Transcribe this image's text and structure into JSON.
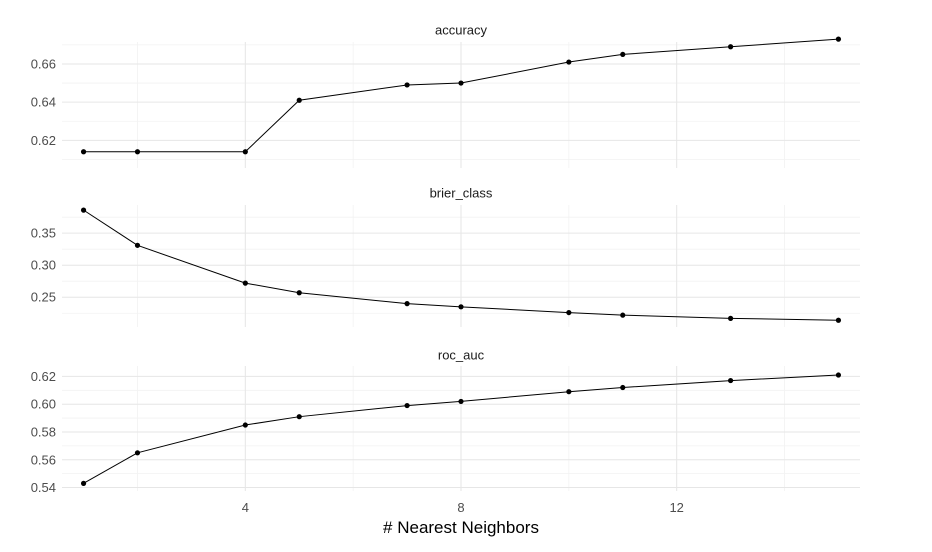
{
  "chart_data": {
    "type": "line",
    "xlabel": "# Nearest Neighbors",
    "xlim": [
      0.6,
      15.4
    ],
    "x_ticks": [
      4,
      8,
      12
    ],
    "x_minor_ticks": [
      2,
      6,
      10,
      14
    ],
    "grid": true,
    "facets": [
      {
        "title": "accuracy",
        "ylim": [
          0.6055,
          0.6715
        ],
        "y_ticks": [
          0.62,
          0.64,
          0.66
        ],
        "y_tick_labels": [
          "0.62",
          "0.64",
          "0.66"
        ],
        "y_minor_ticks": [
          0.61,
          0.63,
          0.65,
          0.67
        ],
        "x": [
          1,
          2,
          4,
          5,
          7,
          8,
          10,
          11,
          13,
          15
        ],
        "y": [
          0.614,
          0.614,
          0.614,
          0.641,
          0.649,
          0.65,
          0.661,
          0.665,
          0.669,
          0.673
        ]
      },
      {
        "title": "brier_class",
        "ylim": [
          0.2035,
          0.394
        ],
        "y_ticks": [
          0.25,
          0.3,
          0.35
        ],
        "y_tick_labels": [
          "0.25",
          "0.30",
          "0.35"
        ],
        "y_minor_ticks": [
          0.225,
          0.275,
          0.325,
          0.375
        ],
        "x": [
          1,
          2,
          4,
          5,
          7,
          8,
          10,
          11,
          13,
          15
        ],
        "y": [
          0.386,
          0.331,
          0.272,
          0.257,
          0.24,
          0.235,
          0.226,
          0.222,
          0.217,
          0.214
        ]
      },
      {
        "title": "roc_auc",
        "ylim": [
          0.5375,
          0.6275
        ],
        "y_ticks": [
          0.54,
          0.56,
          0.58,
          0.6,
          0.62
        ],
        "y_tick_labels": [
          "0.54",
          "0.56",
          "0.58",
          "0.60",
          "0.62"
        ],
        "y_minor_ticks": [
          0.55,
          0.57,
          0.59,
          0.61
        ],
        "x": [
          1,
          2,
          4,
          5,
          7,
          8,
          10,
          11,
          13,
          15
        ],
        "y": [
          0.543,
          0.565,
          0.585,
          0.591,
          0.599,
          0.602,
          0.609,
          0.612,
          0.617,
          0.621
        ]
      }
    ]
  }
}
